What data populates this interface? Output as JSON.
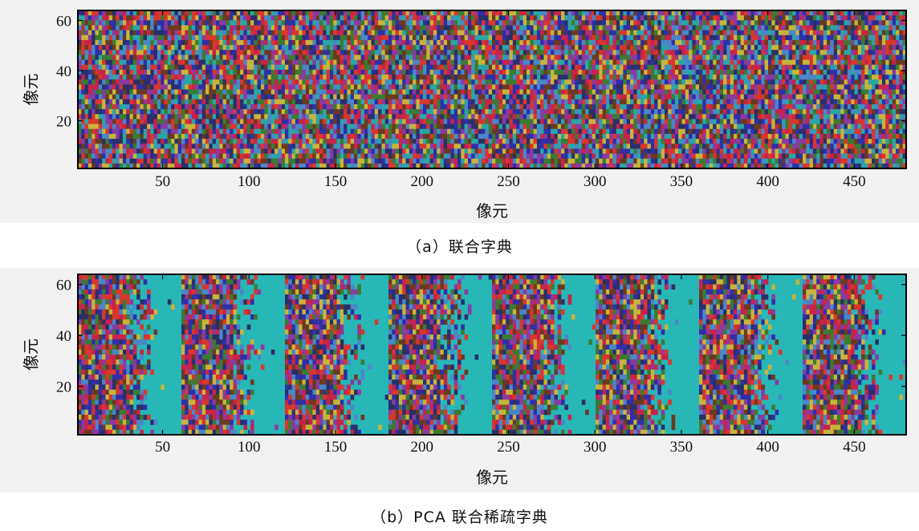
{
  "chart_data": [
    {
      "type": "heatmap",
      "title": "",
      "xlabel": "像元",
      "ylabel": "像元",
      "xlim": [
        1,
        480
      ],
      "ylim": [
        1,
        64
      ],
      "x_ticks": [
        50,
        100,
        150,
        200,
        250,
        300,
        350,
        400,
        450
      ],
      "y_ticks": [
        20,
        40,
        60
      ],
      "grid": false,
      "caption": "（a）联合字典",
      "pattern": "dense random colored atoms across all columns",
      "colors": [
        "#2f2fa8",
        "#c8234a",
        "#2aa6a6",
        "#3c7a34",
        "#8a3aa0",
        "#c8b43a",
        "#2a2f6a",
        "#d9362e",
        "#4a86c8",
        "#6a3a20"
      ],
      "background_color": "#27b7b7"
    },
    {
      "type": "heatmap",
      "title": "",
      "xlabel": "像元",
      "ylabel": "像元",
      "xlim": [
        1,
        480
      ],
      "ylim": [
        1,
        64
      ],
      "x_ticks": [
        50,
        100,
        150,
        200,
        250,
        300,
        350,
        400,
        450
      ],
      "y_ticks": [
        20,
        40,
        60
      ],
      "grid": false,
      "caption": "（b）PCA 联合稀疏字典",
      "pattern": "8 blocks of 60 columns, dense at block start fading to sparse background",
      "block_starts": [
        1,
        61,
        121,
        181,
        241,
        301,
        361,
        421
      ],
      "block_width": 60,
      "colors": [
        "#2f2fa8",
        "#c8234a",
        "#3c7a34",
        "#8a3aa0",
        "#c8b43a",
        "#2a2f6a",
        "#d9362e",
        "#4a86c8",
        "#6a3a20"
      ],
      "background_color": "#27b7b7"
    }
  ]
}
